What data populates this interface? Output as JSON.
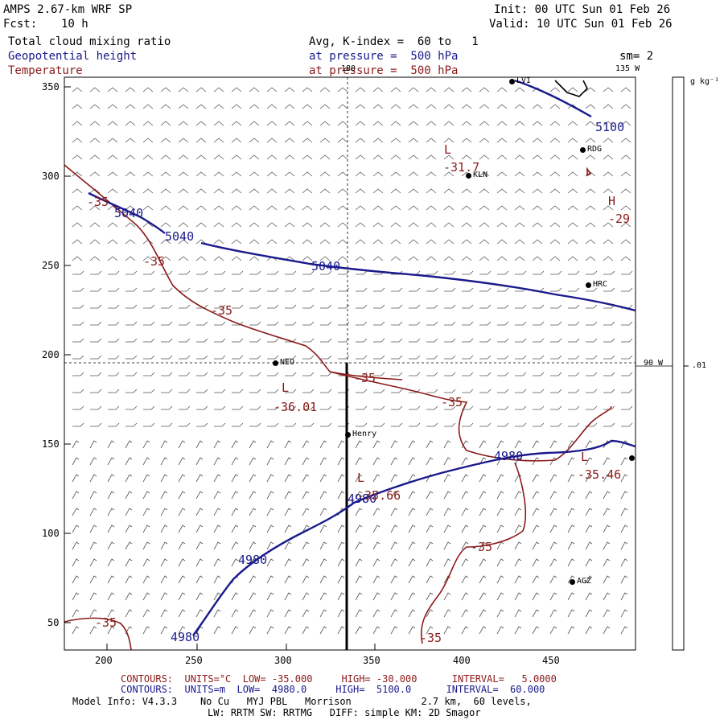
{
  "header": {
    "model": "AMPS 2.67-km WRF SP",
    "init": "Init: 00 UTC Sun 01 Feb 26",
    "fcst_label": "Fcst:",
    "fcst_value": "10 h",
    "valid": "Valid: 10 UTC Sun 01 Feb 26",
    "field1": "Total cloud mixing ratio",
    "field2": "Geopotential height",
    "field3": "Temperature",
    "avg": "Avg, K-index =  60 to   1",
    "pressure1": "at pressure =  500 hPa",
    "pressure2": "at pressure =  500 hPa",
    "smooth": "sm= 2",
    "colors": {
      "geopotential": "#1a1a8c",
      "temperature": "#8b1a1a",
      "text": "#000000"
    }
  },
  "map": {
    "x_ticks": [
      "200",
      "250",
      "300",
      "350",
      "400",
      "450"
    ],
    "y_ticks": [
      "350",
      "300",
      "250",
      "200",
      "150",
      "100",
      "50"
    ],
    "meridian_top": "180",
    "meridian_135": "135 W",
    "meridian_90": "90 W",
    "stations": [
      {
        "name": "LVI",
        "label": "LVI"
      },
      {
        "name": "RDG",
        "label": "RDG"
      },
      {
        "name": "KLN",
        "label": "KLN"
      },
      {
        "name": "HRC",
        "label": "HRC"
      },
      {
        "name": "NEO",
        "label": "NEO"
      },
      {
        "name": "Henry",
        "label": "Henry"
      },
      {
        "name": "AGZ",
        "label": "AGZ"
      }
    ],
    "height_labels": [
      "5040",
      "5040",
      "5040",
      "5100",
      "4980",
      "4980",
      "4980",
      "4980"
    ],
    "temp_labels": [
      "-35",
      "-35",
      "-35",
      "-35",
      "-35",
      "-35",
      "-35",
      "-35",
      "-29",
      "-31.7",
      "-36.01",
      "-35.66",
      "-35.46"
    ],
    "extrema": {
      "low1": "L",
      "low2": "L",
      "low3": "L",
      "low4": "L",
      "high1": "H",
      "low1_value": "-31.7",
      "low2_value": "-36.01",
      "low3_value": "-35.66",
      "low4_value": "-35.46",
      "high1_value": "-29"
    }
  },
  "colorbar": {
    "units": "g kg⁻¹",
    "tick": ".01"
  },
  "footer": {
    "temp_contours": "CONTOURS:  UNITS=°C  LOW= -35.000     HIGH= -30.000      INTERVAL=   5.0000",
    "height_contours": "CONTOURS:  UNITS=m  LOW=  4980.0     HIGH=  5100.0      INTERVAL=  60.000",
    "model_info1": "Model Info: V4.3.3    No Cu   MYJ PBL   Morrison            2.7 km,  60 levels,",
    "model_info2": "LW: RRTM SW: RRTMG   DIFF: simple KM: 2D Smagor"
  }
}
